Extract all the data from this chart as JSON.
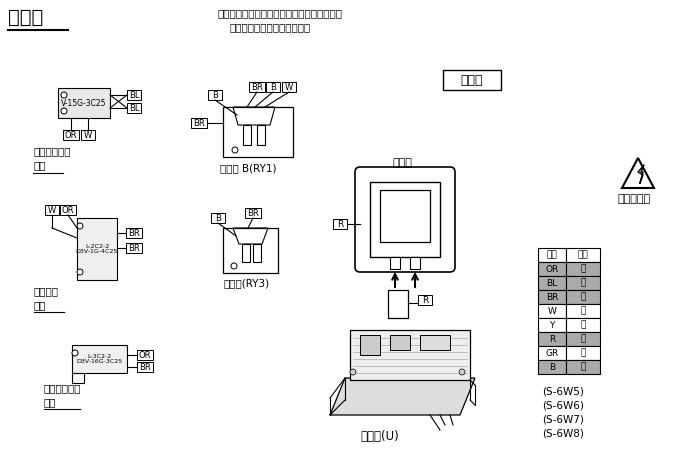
{
  "title": "接线图",
  "note_line1": "注：置换元件时，请按图所示检查导线颜色。",
  "note_line2": "括号内所指为接插件的颜色。",
  "brand": "新高业",
  "warning_text": "注意：高压",
  "component1_caption_l1": "初级碰锁开关",
  "component1_caption_l2": "顶部",
  "relay1_label": "继电器 B(RY1)",
  "component2_caption_l1": "短路开关",
  "component2_caption_l2": "中部",
  "relay2_label": "继电器(RY3)",
  "component3_caption_l1": "次级碰锁开关",
  "component3_caption_l2": "底部",
  "magnetron_label": "磁控管",
  "inverter_label": "变频器(U)",
  "color_table_headers": [
    "符号",
    "颜色"
  ],
  "color_table_rows": [
    [
      "OR",
      "橙"
    ],
    [
      "BL",
      "蓝"
    ],
    [
      "BR",
      "棕"
    ],
    [
      "W",
      "白"
    ],
    [
      "Y",
      "黄"
    ],
    [
      "R",
      "红"
    ],
    [
      "GR",
      "灰"
    ],
    [
      "B",
      "黑"
    ]
  ],
  "color_table_dark_rows": [
    0,
    1,
    2,
    5,
    7
  ],
  "model_notes": [
    "(S-6W5)",
    "(S-6W6)",
    "(S-6W7)",
    "(S-6W8)"
  ],
  "bg_color": "#ffffff"
}
